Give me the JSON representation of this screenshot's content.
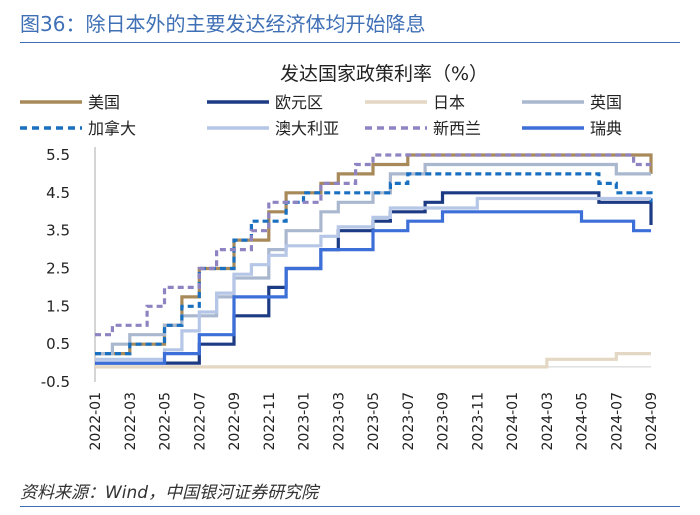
{
  "figure_title": "图36：除日本外的主要发达经济体均开始降息",
  "source": "资料来源：Wind，中国银河证券研究院",
  "chart_data": {
    "type": "line",
    "step": true,
    "title": "发达国家政策利率（%）",
    "xlabel": "",
    "ylabel": "",
    "ylim": [
      -0.5,
      5.5
    ],
    "yticks": [
      -0.5,
      0.5,
      1.5,
      2.5,
      3.5,
      4.5,
      5.5
    ],
    "xticks": [
      "2022-01",
      "2022-03",
      "2022-05",
      "2022-07",
      "2022-09",
      "2022-11",
      "2023-01",
      "2023-03",
      "2023-05",
      "2023-07",
      "2023-09",
      "2023-11",
      "2024-01",
      "2024-03",
      "2024-05",
      "2024-07",
      "2024-09"
    ],
    "x": [
      "2022-01",
      "2022-02",
      "2022-03",
      "2022-04",
      "2022-05",
      "2022-06",
      "2022-07",
      "2022-08",
      "2022-09",
      "2022-10",
      "2022-11",
      "2022-12",
      "2023-01",
      "2023-02",
      "2023-03",
      "2023-04",
      "2023-05",
      "2023-06",
      "2023-07",
      "2023-08",
      "2023-09",
      "2023-10",
      "2023-11",
      "2023-12",
      "2024-01",
      "2024-02",
      "2024-03",
      "2024-04",
      "2024-05",
      "2024-06",
      "2024-07",
      "2024-08",
      "2024-09"
    ],
    "grid": false,
    "legend_placement": "top",
    "series": [
      {
        "name": "美国",
        "color": "#a88a5a",
        "dash": false,
        "values": [
          0.25,
          0.25,
          0.5,
          0.5,
          1.0,
          1.75,
          2.5,
          2.5,
          3.25,
          3.25,
          4.0,
          4.5,
          4.5,
          4.75,
          5.0,
          5.0,
          5.25,
          5.25,
          5.5,
          5.5,
          5.5,
          5.5,
          5.5,
          5.5,
          5.5,
          5.5,
          5.5,
          5.5,
          5.5,
          5.5,
          5.5,
          5.5,
          5.0
        ]
      },
      {
        "name": "欧元区",
        "color": "#1c3b84",
        "dash": false,
        "values": [
          0,
          0,
          0,
          0,
          0,
          0,
          0.5,
          0.5,
          1.25,
          1.25,
          2.0,
          2.5,
          2.5,
          3.0,
          3.5,
          3.5,
          3.75,
          4.0,
          4.0,
          4.25,
          4.5,
          4.5,
          4.5,
          4.5,
          4.5,
          4.5,
          4.5,
          4.5,
          4.5,
          4.25,
          4.25,
          4.25,
          3.65
        ]
      },
      {
        "name": "日本",
        "color": "#e4d7c4",
        "dash": false,
        "values": [
          -0.1,
          -0.1,
          -0.1,
          -0.1,
          -0.1,
          -0.1,
          -0.1,
          -0.1,
          -0.1,
          -0.1,
          -0.1,
          -0.1,
          -0.1,
          -0.1,
          -0.1,
          -0.1,
          -0.1,
          -0.1,
          -0.1,
          -0.1,
          -0.1,
          -0.1,
          -0.1,
          -0.1,
          -0.1,
          -0.1,
          0.1,
          0.1,
          0.1,
          0.1,
          0.25,
          0.25,
          0.25
        ]
      },
      {
        "name": "英国",
        "color": "#a9b7cf",
        "dash": false,
        "values": [
          0.25,
          0.5,
          0.75,
          0.75,
          1.0,
          1.25,
          1.25,
          1.75,
          2.25,
          2.25,
          3.0,
          3.5,
          3.5,
          4.0,
          4.25,
          4.25,
          4.5,
          5.0,
          5.0,
          5.25,
          5.25,
          5.25,
          5.25,
          5.25,
          5.25,
          5.25,
          5.25,
          5.25,
          5.25,
          5.25,
          5.0,
          5.0,
          5.0
        ]
      },
      {
        "name": "加拿大",
        "color": "#1a70c0",
        "dash": true,
        "values": [
          0.25,
          0.25,
          0.5,
          0.5,
          1.0,
          1.5,
          2.5,
          2.5,
          3.25,
          3.75,
          3.75,
          4.25,
          4.5,
          4.5,
          4.5,
          4.5,
          4.5,
          4.75,
          5.0,
          5.0,
          5.0,
          5.0,
          5.0,
          5.0,
          5.0,
          5.0,
          5.0,
          5.0,
          5.0,
          4.75,
          4.5,
          4.5,
          4.25
        ]
      },
      {
        "name": "澳大利亚",
        "color": "#b6c6e6",
        "dash": false,
        "values": [
          0.1,
          0.1,
          0.1,
          0.1,
          0.35,
          0.85,
          1.35,
          1.85,
          2.35,
          2.6,
          2.85,
          3.1,
          3.1,
          3.35,
          3.6,
          3.6,
          3.85,
          4.1,
          4.1,
          4.1,
          4.1,
          4.1,
          4.35,
          4.35,
          4.35,
          4.35,
          4.35,
          4.35,
          4.35,
          4.35,
          4.35,
          4.35,
          4.35
        ]
      },
      {
        "name": "新西兰",
        "color": "#8f83c2",
        "dash": true,
        "values": [
          0.75,
          1.0,
          1.0,
          1.5,
          2.0,
          2.0,
          2.5,
          3.0,
          3.0,
          3.5,
          4.25,
          4.25,
          4.25,
          4.75,
          4.75,
          5.25,
          5.5,
          5.5,
          5.5,
          5.5,
          5.5,
          5.5,
          5.5,
          5.5,
          5.5,
          5.5,
          5.5,
          5.5,
          5.5,
          5.5,
          5.5,
          5.25,
          5.25
        ]
      },
      {
        "name": "瑞典",
        "color": "#3d6fd9",
        "dash": false,
        "values": [
          0,
          0,
          0,
          0,
          0.25,
          0.25,
          0.75,
          0.75,
          1.75,
          1.75,
          1.75,
          2.5,
          2.5,
          3.0,
          3.0,
          3.0,
          3.5,
          3.5,
          3.75,
          3.75,
          4.0,
          4.0,
          4.0,
          4.0,
          4.0,
          4.0,
          4.0,
          4.0,
          3.75,
          3.75,
          3.75,
          3.5,
          3.5
        ]
      }
    ]
  }
}
